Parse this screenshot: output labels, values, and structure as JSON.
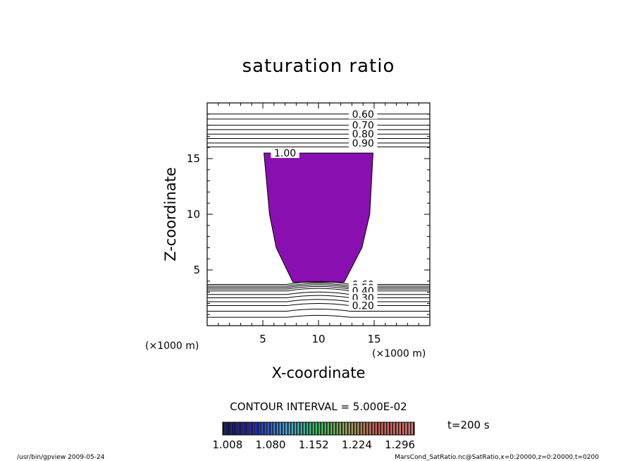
{
  "chart_data": {
    "type": "contour",
    "title": "saturation ratio",
    "xlabel": "X-coordinate",
    "ylabel": "Z-coordinate",
    "x_unit": "(×1000 m)",
    "z_unit": "(×1000 m)",
    "xlim": [
      0,
      20
    ],
    "ylim": [
      0,
      20
    ],
    "x_ticks": [
      5,
      10,
      15
    ],
    "y_ticks": [
      5,
      10,
      15
    ],
    "time_label": "t=200 s",
    "contour_interval_text": "CONTOUR INTERVAL = 5.000E-02",
    "upper_contours": [
      {
        "value": 0.6,
        "label": "0.60",
        "z": 19.0
      },
      {
        "value": 0.65,
        "label": "",
        "z": 18.55
      },
      {
        "value": 0.7,
        "label": "0.70",
        "z": 18.0
      },
      {
        "value": 0.75,
        "label": "",
        "z": 17.6
      },
      {
        "value": 0.8,
        "label": "0.80",
        "z": 17.2
      },
      {
        "value": 0.85,
        "label": "",
        "z": 16.8
      },
      {
        "value": 0.9,
        "label": "0.90",
        "z": 16.4
      },
      {
        "value": 0.95,
        "label": "",
        "z": 16.05
      }
    ],
    "saturated_region": {
      "label": "1.00",
      "contour_value": 1.0,
      "color": "#8a0fb0",
      "outline_points": [
        [
          5.1,
          15.5
        ],
        [
          14.9,
          15.5
        ],
        [
          14.6,
          10.0
        ],
        [
          13.9,
          7.0
        ],
        [
          12.3,
          3.9
        ],
        [
          7.7,
          3.9
        ],
        [
          6.2,
          7.0
        ],
        [
          5.6,
          10.0
        ]
      ]
    },
    "lower_contours": [
      {
        "value": 0.6,
        "label": "0.60",
        "z": 3.7
      },
      {
        "value": 0.55,
        "label": "",
        "z": 3.55
      },
      {
        "value": 0.5,
        "label": "0.50",
        "z": 3.42
      },
      {
        "value": 0.45,
        "label": "",
        "z": 3.28
      },
      {
        "value": 0.4,
        "label": "0.40",
        "z": 3.12
      },
      {
        "value": 0.35,
        "label": "",
        "z": 2.8
      },
      {
        "value": 0.3,
        "label": "0.30",
        "z": 2.5
      },
      {
        "value": 0.25,
        "label": "",
        "z": 2.15
      },
      {
        "value": 0.2,
        "label": "0.20",
        "z": 1.8
      },
      {
        "value": 0.15,
        "label": "",
        "z": 1.3
      },
      {
        "value": 0.1,
        "label": "",
        "z": 0.75
      }
    ],
    "colorbar": {
      "min": 1.0,
      "max": 1.32,
      "tick_labels": [
        "1.008",
        "1.080",
        "1.152",
        "1.224",
        "1.296"
      ],
      "tick_values": [
        1.008,
        1.08,
        1.152,
        1.224,
        1.296
      ]
    }
  },
  "footer": {
    "left": "/usr/bin/gpview  2009-05-24",
    "right": "MarsCond_SatRatio.nc@SatRatio,x=0:20000,z=0:20000,t=0200"
  }
}
